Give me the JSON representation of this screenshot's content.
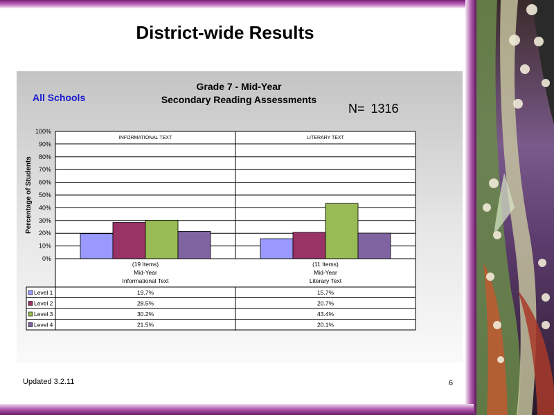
{
  "slide": {
    "title": "District-wide Results",
    "updated": "Updated  3.2.11",
    "page_number": "6"
  },
  "chart_data": {
    "type": "bar",
    "title_line1": "Grade 7 - Mid-Year",
    "title_line2": "Secondary Reading Assessments",
    "subtitle": "All Schools",
    "n_label": "N=  1316",
    "ylabel": "Percentage of Students",
    "ylim": [
      0,
      100
    ],
    "yticks": [
      "0%",
      "10%",
      "20%",
      "30%",
      "40%",
      "50%",
      "60%",
      "70%",
      "80%",
      "90%",
      "100%"
    ],
    "grid": true,
    "panels": [
      "INFORMATIONAL TEXT",
      "LITERARY TEXT"
    ],
    "categories": [
      {
        "line1": "(19 Items)",
        "line2": "Mid-Year",
        "line3": "Informational Text"
      },
      {
        "line1": "(11 Items)",
        "line2": "Mid-Year",
        "line3": "Literary Text"
      }
    ],
    "series": [
      {
        "name": "Level 1",
        "color": "#9999ff",
        "values": [
          19.7,
          15.7
        ],
        "labels": [
          "19.7%",
          "15.7%"
        ]
      },
      {
        "name": "Level 2",
        "color": "#993366",
        "values": [
          28.5,
          20.7
        ],
        "labels": [
          "28.5%",
          "20.7%"
        ]
      },
      {
        "name": "Level 3",
        "color": "#99bb55",
        "values": [
          30.2,
          43.4
        ],
        "labels": [
          "30.2%",
          "43.4%"
        ]
      },
      {
        "name": "Level 4",
        "color": "#8064a2",
        "values": [
          21.5,
          20.1
        ],
        "labels": [
          "21.5%",
          "20.1%"
        ]
      }
    ],
    "legend_placement": "data-table-left"
  }
}
